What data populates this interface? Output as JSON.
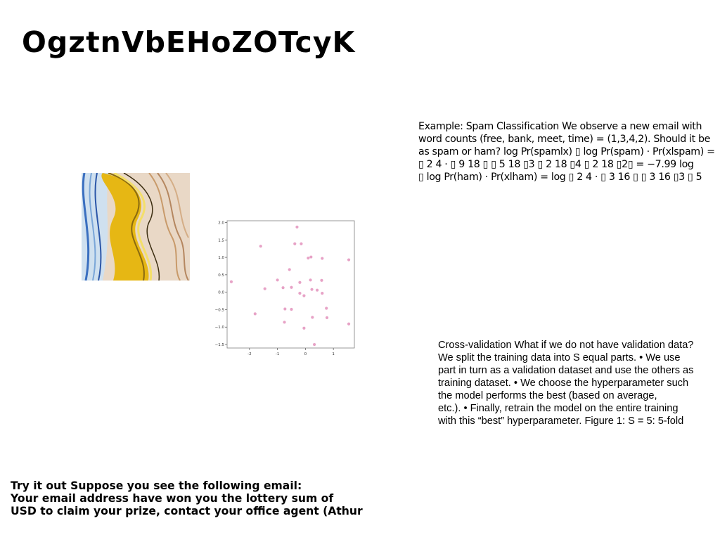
{
  "title": "OgztnVbEHoZOTcyK",
  "spam_text": [
    "Example: Spam Classification We observe a new email with",
    "word counts (free, bank, meet, time) = (1,3,4,2). Should it be",
    "as spam or ham? log Pr(spamlx) ▯ log Pr(spam) · Pr(xlspam) =",
    "▯ 2 4 · ▯ 9 18 ▯ ▯ 5 18 ▯3 ▯ 2 18 ▯4 ▯ 2 18 ▯2▯ = −7.99 log",
    "▯ log Pr(ham) · Pr(xlham) = log ▯ 2 4 · ▯ 3 16 ▯ ▯ 3 16 ▯3 ▯ 5"
  ],
  "cv_text": [
    "Cross-validation What if we do not have validation data?",
    "We split the training data into S equal parts. • We use",
    "part in turn as a validation dataset and use the others as",
    "training dataset. • We choose the hyperparameter such",
    "the model performs the best (based on average,",
    "etc.). • Finally, retrain the model on the entire training",
    "with this “best” hyperparameter. Figure 1: S = 5: 5-fold"
  ],
  "email_text": [
    "Try it out Suppose you see the following email:",
    "Your email address have won you the lottery sum of",
    "USD to claim your prize, contact your office agent (Athur"
  ],
  "chart_data": {
    "type": "scatter",
    "color": "#e7a2c6",
    "xlim": [
      -2.8,
      1.75
    ],
    "ylim": [
      -1.6,
      2.05
    ],
    "xticks": [
      "-2",
      "-1",
      "0",
      "1"
    ],
    "xtick_values": [
      -2,
      -1,
      0,
      1
    ],
    "yticks": [
      "2.0",
      "1.5",
      "1.0",
      "0.5",
      "0.0",
      "−0.5",
      "−1.0",
      "−1.5"
    ],
    "ytick_values": [
      2.0,
      1.5,
      1.0,
      0.5,
      0.0,
      -0.5,
      -1.0,
      -1.5
    ],
    "points": [
      [
        -2.65,
        0.3
      ],
      [
        -1.8,
        -0.62
      ],
      [
        -1.6,
        1.32
      ],
      [
        -1.45,
        0.1
      ],
      [
        -1.0,
        0.35
      ],
      [
        -0.8,
        0.13
      ],
      [
        -0.73,
        -0.48
      ],
      [
        -0.75,
        -0.86
      ],
      [
        -0.57,
        0.65
      ],
      [
        -0.5,
        -0.49
      ],
      [
        -0.5,
        0.14
      ],
      [
        -0.38,
        1.39
      ],
      [
        -0.3,
        1.87
      ],
      [
        -0.2,
        0.28
      ],
      [
        -0.2,
        -0.03
      ],
      [
        -0.15,
        1.39
      ],
      [
        -0.05,
        -1.03
      ],
      [
        -0.05,
        -0.1
      ],
      [
        0.1,
        0.98
      ],
      [
        0.18,
        0.35
      ],
      [
        0.2,
        1.01
      ],
      [
        0.23,
        0.08
      ],
      [
        0.25,
        -0.72
      ],
      [
        0.32,
        -1.5
      ],
      [
        0.42,
        0.06
      ],
      [
        0.58,
        0.34
      ],
      [
        0.6,
        -0.03
      ],
      [
        0.6,
        0.97
      ],
      [
        0.75,
        -0.46
      ],
      [
        0.77,
        -0.73
      ],
      [
        1.55,
        0.93
      ],
      [
        1.55,
        -0.91
      ]
    ]
  }
}
